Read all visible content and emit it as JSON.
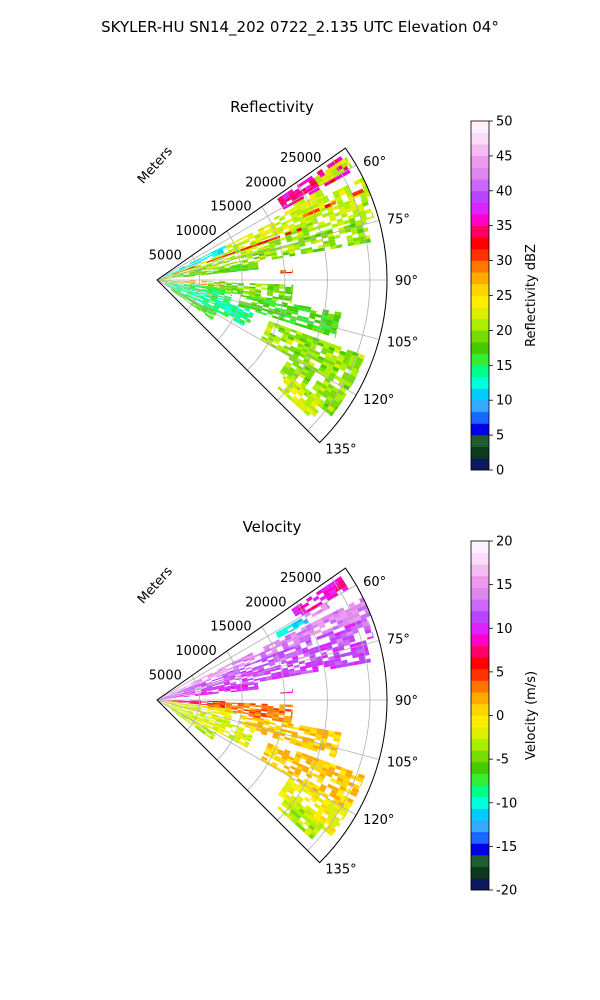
{
  "figure": {
    "suptitle": "SKYLER-HU  SN14_202  0722_2.135 UTC Elevation 04°"
  },
  "chart_data": [
    {
      "type": "polar-sector",
      "title": "Reflectivity",
      "radial_label": "Meters",
      "radial_range": [
        0,
        27000
      ],
      "radial_ticks": [
        5000,
        10000,
        15000,
        20000,
        25000
      ],
      "azimuth_range_deg": [
        55,
        135
      ],
      "azimuth_ticks_deg": [
        60,
        75,
        90,
        105,
        120,
        135
      ],
      "azimuth_tick_labels": [
        "60°",
        "75°",
        "90°",
        "105°",
        "120°",
        "135°"
      ],
      "grid": true,
      "colorbar": {
        "label": "Reflectivity dBZ",
        "range": [
          0,
          50
        ],
        "ticks": [
          0,
          5,
          10,
          15,
          20,
          25,
          30,
          35,
          40,
          45,
          50
        ],
        "colors": [
          "#0a1a5c",
          "#0d3a1f",
          "#1f5c2e",
          "#0000e6",
          "#1a66ff",
          "#33aaff",
          "#00ccff",
          "#00ffdd",
          "#00ff88",
          "#33ee33",
          "#44cc00",
          "#77dd00",
          "#aaee00",
          "#ddee00",
          "#ffee00",
          "#ffd400",
          "#ffaa00",
          "#ff7700",
          "#ff3300",
          "#ff0000",
          "#ff0066",
          "#ff00cc",
          "#dd22ff",
          "#bb44ff",
          "#cc66ff",
          "#dd88ee",
          "#ee99ee",
          "#f4bbf4",
          "#fbddfb",
          "#fff0ff"
        ]
      },
      "echo_regions": [
        {
          "az": [
            56,
            61
          ],
          "r": [
            17000,
            26000
          ],
          "value": 35
        },
        {
          "az": [
            57,
            60
          ],
          "r": [
            22000,
            26500
          ],
          "value": 22
        },
        {
          "az": [
            61,
            63.5
          ],
          "r": [
            15500,
            22000
          ],
          "value": 22
        },
        {
          "az": [
            63,
            68
          ],
          "r": [
            800,
            9000
          ],
          "value": 12
        },
        {
          "az": [
            63.5,
            68.5
          ],
          "r": [
            9000,
            27000
          ],
          "value": 22
        },
        {
          "az": [
            66,
            67
          ],
          "r": [
            18000,
            27000
          ],
          "value": 30
        },
        {
          "az": [
            68.5,
            74
          ],
          "r": [
            500,
            26500
          ],
          "value": 21
        },
        {
          "az": [
            70,
            71
          ],
          "r": [
            2000,
            18000
          ],
          "value": 32
        },
        {
          "az": [
            74,
            80
          ],
          "r": [
            400,
            25500
          ],
          "value": 20
        },
        {
          "az": [
            80,
            84
          ],
          "r": [
            300,
            12000
          ],
          "value": 18
        },
        {
          "az": [
            85.5,
            87
          ],
          "r": [
            14500,
            16000
          ],
          "value": 30
        },
        {
          "az": [
            91,
            96
          ],
          "r": [
            300,
            8000
          ],
          "value": 28
        },
        {
          "az": [
            92,
            100
          ],
          "r": [
            6000,
            16000
          ],
          "value": 19
        },
        {
          "az": [
            97,
            108
          ],
          "r": [
            400,
            9000
          ],
          "value": 15
        },
        {
          "az": [
            100,
            108
          ],
          "r": [
            10000,
            22000
          ],
          "value": 17
        },
        {
          "az": [
            108,
            118
          ],
          "r": [
            1000,
            12000
          ],
          "value": 14
        },
        {
          "az": [
            110,
            120
          ],
          "r": [
            14000,
            26000
          ],
          "value": 20
        },
        {
          "az": [
            118,
            126
          ],
          "r": [
            2000,
            8000
          ],
          "value": 17
        },
        {
          "az": [
            120,
            128
          ],
          "r": [
            18000,
            26000
          ],
          "value": 20
        },
        {
          "az": [
            126,
            132
          ],
          "r": [
            19000,
            24500
          ],
          "value": 22
        }
      ]
    },
    {
      "type": "polar-sector",
      "title": "Velocity",
      "radial_label": "Meters",
      "radial_range": [
        0,
        27000
      ],
      "radial_ticks": [
        5000,
        10000,
        15000,
        20000,
        25000
      ],
      "azimuth_range_deg": [
        55,
        135
      ],
      "azimuth_ticks_deg": [
        60,
        75,
        90,
        105,
        120,
        135
      ],
      "azimuth_tick_labels": [
        "60°",
        "75°",
        "90°",
        "105°",
        "120°",
        "135°"
      ],
      "grid": true,
      "colorbar": {
        "label": "Velocity (m/s)",
        "range": [
          -20,
          20
        ],
        "ticks": [
          -20,
          -15,
          -10,
          -5,
          0,
          5,
          10,
          15,
          20
        ],
        "colors": [
          "#0a1a5c",
          "#0d3a1f",
          "#1f5c2e",
          "#0000e6",
          "#1a66ff",
          "#33aaff",
          "#00ccff",
          "#00ffdd",
          "#00ff88",
          "#33ee33",
          "#44cc00",
          "#77dd00",
          "#aaee00",
          "#ddee00",
          "#ffee00",
          "#ffd400",
          "#ffaa00",
          "#ff7700",
          "#ff3300",
          "#ff0000",
          "#ff0066",
          "#ff00cc",
          "#dd22ff",
          "#bb44ff",
          "#cc66ff",
          "#dd88ee",
          "#ee99ee",
          "#f4bbf4",
          "#fbddfb",
          "#fff0ff"
        ]
      },
      "echo_regions": [
        {
          "az": [
            56,
            60
          ],
          "r": [
            19000,
            26000
          ],
          "value": 9
        },
        {
          "az": [
            60.5,
            63
          ],
          "r": [
            16000,
            20000
          ],
          "value": -11
        },
        {
          "az": [
            60,
            62
          ],
          "r": [
            20000,
            23000
          ],
          "value": 14
        },
        {
          "az": [
            63.5,
            68
          ],
          "r": [
            900,
            9000
          ],
          "value": 15
        },
        {
          "az": [
            63.5,
            68.5
          ],
          "r": [
            9000,
            27000
          ],
          "value": 14
        },
        {
          "az": [
            68.5,
            74
          ],
          "r": [
            500,
            26500
          ],
          "value": 12
        },
        {
          "az": [
            74,
            80
          ],
          "r": [
            400,
            25500
          ],
          "value": 11
        },
        {
          "az": [
            80,
            84
          ],
          "r": [
            300,
            12000
          ],
          "value": 10
        },
        {
          "az": [
            85.5,
            87
          ],
          "r": [
            14500,
            16000
          ],
          "value": 9
        },
        {
          "az": [
            91,
            96
          ],
          "r": [
            300,
            8000
          ],
          "value": 7
        },
        {
          "az": [
            92,
            100
          ],
          "r": [
            6000,
            16000
          ],
          "value": 3
        },
        {
          "az": [
            97,
            108
          ],
          "r": [
            400,
            9000
          ],
          "value": -2
        },
        {
          "az": [
            100,
            108
          ],
          "r": [
            10000,
            22000
          ],
          "value": 1
        },
        {
          "az": [
            108,
            118
          ],
          "r": [
            1000,
            12000
          ],
          "value": -2
        },
        {
          "az": [
            110,
            120
          ],
          "r": [
            14000,
            26000
          ],
          "value": 1
        },
        {
          "az": [
            118,
            126
          ],
          "r": [
            2000,
            8000
          ],
          "value": -3
        },
        {
          "az": [
            120,
            128
          ],
          "r": [
            18000,
            26000
          ],
          "value": -1
        },
        {
          "az": [
            126,
            132
          ],
          "r": [
            19000,
            24500
          ],
          "value": -3
        }
      ]
    }
  ]
}
